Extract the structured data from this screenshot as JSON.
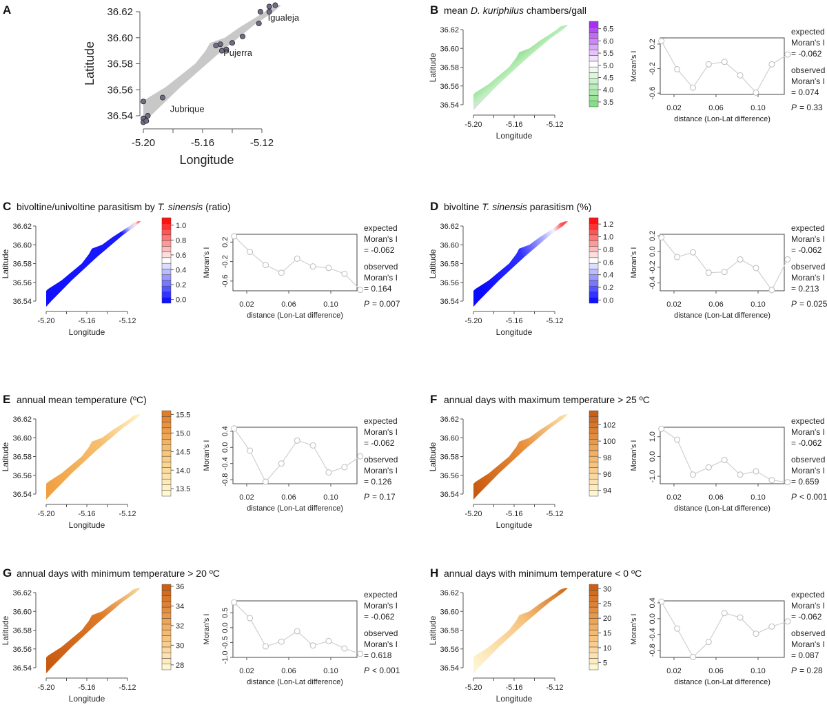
{
  "chart_data": [
    {
      "panel": "A",
      "type": "scatter",
      "xlabel": "Longitude",
      "ylabel": "Latitude",
      "xticks": [
        "-5.20",
        "-5.16",
        "-5.12"
      ],
      "yticks": [
        "36.54",
        "36.56",
        "36.58",
        "36.60",
        "36.62"
      ],
      "fill_color": "#c8c8c8",
      "point_color": "#6f6d86",
      "sites": [
        [
          -5.2,
          36.551
        ],
        [
          -5.187,
          36.554
        ],
        [
          -5.2,
          36.538
        ],
        [
          -5.2,
          36.535
        ],
        [
          -5.198,
          36.536
        ],
        [
          -5.197,
          36.54
        ],
        [
          -5.151,
          36.594
        ],
        [
          -5.148,
          36.595
        ],
        [
          -5.147,
          36.59
        ],
        [
          -5.144,
          36.591
        ],
        [
          -5.14,
          36.596
        ],
        [
          -5.133,
          36.601
        ],
        [
          -5.122,
          36.611
        ],
        [
          -5.121,
          36.62
        ],
        [
          -5.115,
          36.62
        ],
        [
          -5.115,
          36.624
        ],
        [
          -5.111,
          36.625
        ]
      ],
      "place_labels": [
        {
          "name": "Igualeja",
          "lon": -5.116,
          "lat": 36.613
        },
        {
          "name": "Pujerra",
          "lon": -5.146,
          "lat": 36.586
        },
        {
          "name": "Jubrique",
          "lon": -5.182,
          "lat": 36.543
        }
      ]
    },
    {
      "panel": "B",
      "type": "heatmap+line",
      "title_pre": "mean ",
      "title_italic": "D. kuriphilus",
      "title_post": " chambers/gall",
      "map_stops": [
        [
          "0",
          "#9be39b"
        ],
        [
          "0.6",
          "#c4efc4"
        ],
        [
          "0.8",
          "#e8d4f4"
        ],
        [
          "1",
          "#b048e8"
        ]
      ],
      "map_dir": "perp",
      "colorbar": {
        "ticks": [
          "3.5",
          "4.0",
          "4.5",
          "5.0",
          "5.5",
          "6.0",
          "6.5"
        ],
        "range": [
          3.3,
          6.8
        ],
        "low": "#7ddc7d",
        "mid": "#ffffff",
        "high": "#a020f0"
      },
      "moran": {
        "distance": [
          0.008,
          0.023,
          0.038,
          0.053,
          0.068,
          0.083,
          0.098,
          0.113,
          0.128
        ],
        "values": [
          0.25,
          -0.21,
          -0.51,
          -0.13,
          -0.09,
          -0.31,
          -0.59,
          -0.13,
          0.03
        ],
        "ylim": [
          -0.62,
          0.3
        ],
        "yticks": [
          "-0.6",
          "-0.2",
          "0.2"
        ]
      },
      "expected": "= -0.062",
      "observed": "= 0.074",
      "p": "= 0.33"
    },
    {
      "panel": "C",
      "type": "heatmap+line",
      "title_pre": "bivoltine/univoltine parasitism by ",
      "title_italic": "T. sinensis",
      "title_post": " (ratio)",
      "map_stops": [
        [
          "0",
          "#1010ff"
        ],
        [
          "0.82",
          "#1a1aff"
        ],
        [
          "0.9",
          "#c8c8ff"
        ],
        [
          "0.96",
          "#ffe0e0"
        ],
        [
          "1",
          "#ff4040"
        ]
      ],
      "map_dir": "along",
      "colorbar": {
        "ticks": [
          "0.0",
          "0.2",
          "0.4",
          "0.6",
          "0.8",
          "1.0"
        ],
        "range": [
          -0.05,
          1.1
        ],
        "low": "#0000ff",
        "mid": "#ffffff",
        "high": "#ff0000"
      },
      "moran": {
        "distance": [
          0.008,
          0.023,
          0.038,
          0.053,
          0.068,
          0.083,
          0.098,
          0.113,
          0.128
        ],
        "values": [
          0.32,
          0.0,
          -0.27,
          -0.43,
          -0.14,
          -0.3,
          -0.33,
          -0.45,
          -0.78
        ],
        "ylim": [
          -0.8,
          0.36
        ],
        "yticks": [
          "-0.6",
          "-0.2",
          "0.2"
        ]
      },
      "expected": "= -0.062",
      "observed": "= 0.164",
      "p": "= 0.007"
    },
    {
      "panel": "D",
      "type": "heatmap+line",
      "title_pre": "bivoltine ",
      "title_italic": "T. sinensis",
      "title_post": " parasitism (%)",
      "map_stops": [
        [
          "0",
          "#0a0aff"
        ],
        [
          "0.5",
          "#3030ff"
        ],
        [
          "0.78",
          "#b0b0ff"
        ],
        [
          "0.9",
          "#f4f4ff"
        ],
        [
          "1",
          "#ff5050"
        ]
      ],
      "map_dir": "mixed",
      "colorbar": {
        "ticks": [
          "0.0",
          "0.2",
          "0.4",
          "0.6",
          "0.8",
          "1.0",
          "1.2"
        ],
        "range": [
          -0.05,
          1.3
        ],
        "low": "#0000ff",
        "mid": "#ffffff",
        "high": "#ff0000"
      },
      "moran": {
        "distance": [
          0.008,
          0.023,
          0.038,
          0.053,
          0.068,
          0.083,
          0.098,
          0.113,
          0.128
        ],
        "values": [
          0.18,
          -0.07,
          -0.01,
          -0.27,
          -0.26,
          -0.1,
          -0.21,
          -0.49,
          -0.1
        ],
        "ylim": [
          -0.5,
          0.22
        ],
        "yticks": [
          "-0.4",
          "-0.2",
          "0.0",
          "0.2"
        ]
      },
      "expected": "= -0.062",
      "observed": "= 0.213",
      "p": "= 0.025"
    },
    {
      "panel": "E",
      "type": "heatmap+line",
      "title_pre": "annual mean temperature (ºC)",
      "title_italic": "",
      "title_post": "",
      "map_stops": [
        [
          "0",
          "#f0a040"
        ],
        [
          "0.6",
          "#f6c070"
        ],
        [
          "1",
          "#fff2c8"
        ]
      ],
      "map_dir": "along",
      "colorbar": {
        "ticks": [
          "13.5",
          "14.0",
          "14.5",
          "15.0",
          "15.5"
        ],
        "range": [
          13.3,
          15.6
        ],
        "low": "#fffbd8",
        "mid": "#f8c87a",
        "high": "#e07820"
      },
      "moran": {
        "distance": [
          0.008,
          0.023,
          0.038,
          0.053,
          0.068,
          0.083,
          0.098,
          0.113,
          0.128
        ],
        "values": [
          0.47,
          -0.08,
          -0.85,
          -0.4,
          0.17,
          0.05,
          -0.62,
          -0.49,
          -0.22
        ],
        "ylim": [
          -0.9,
          0.5
        ],
        "yticks": [
          "-0.8",
          "-0.4",
          "0.0",
          "0.4"
        ]
      },
      "expected": "= -0.062",
      "observed": "= 0.126",
      "p": "= 0.17"
    },
    {
      "panel": "F",
      "type": "heatmap+line",
      "title_pre": "annual days with maximum temperature > 25 ºC",
      "title_italic": "",
      "title_post": "",
      "map_stops": [
        [
          "0",
          "#c85a10"
        ],
        [
          "0.55",
          "#e8903c"
        ],
        [
          "1",
          "#fbe3b0"
        ]
      ],
      "map_dir": "along",
      "colorbar": {
        "ticks": [
          "94",
          "96",
          "98",
          "100",
          "102"
        ],
        "range": [
          93.3,
          103.7
        ],
        "low": "#fffbd8",
        "mid": "#f4b060",
        "high": "#c85a10"
      },
      "moran": {
        "distance": [
          0.008,
          0.023,
          0.038,
          0.053,
          0.068,
          0.083,
          0.098,
          0.113,
          0.128
        ],
        "values": [
          1.4,
          0.85,
          -0.92,
          -0.55,
          -0.18,
          -0.92,
          -0.75,
          -1.2,
          -1.3
        ],
        "ylim": [
          -1.38,
          1.48
        ],
        "yticks": [
          "-1.0",
          "0.0",
          "1.0"
        ]
      },
      "expected": "= -0.062",
      "observed": "= 0.659",
      "p": "< 0.001"
    },
    {
      "panel": "G",
      "type": "heatmap+line",
      "title_pre": "annual days with minimum temperature > 20 ºC",
      "title_italic": "",
      "title_post": "",
      "map_stops": [
        [
          "0",
          "#c85a10"
        ],
        [
          "0.6",
          "#dd7a28"
        ],
        [
          "1",
          "#f8d8a0"
        ]
      ],
      "map_dir": "along",
      "colorbar": {
        "ticks": [
          "28",
          "30",
          "32",
          "34",
          "36"
        ],
        "range": [
          27.5,
          36.2
        ],
        "low": "#fffbd8",
        "mid": "#f4b060",
        "high": "#c85a10"
      },
      "moran": {
        "distance": [
          0.008,
          0.023,
          0.038,
          0.053,
          0.068,
          0.083,
          0.098,
          0.113,
          0.128
        ],
        "values": [
          0.85,
          0.32,
          -0.63,
          -0.47,
          -0.12,
          -0.6,
          -0.45,
          -0.7,
          -0.88
        ],
        "ylim": [
          -1.0,
          0.9
        ],
        "yticks": [
          "-1.0",
          "-0.5",
          "0.0",
          "0.5"
        ]
      },
      "expected": "= -0.062",
      "observed": "= 0.618",
      "p": "< 0.001"
    },
    {
      "panel": "H",
      "type": "heatmap+line",
      "title_pre": "annual days with minimum temperature < 0 ºC",
      "title_italic": "",
      "title_post": "",
      "map_stops": [
        [
          "0",
          "#fff4d0"
        ],
        [
          "0.55",
          "#f6c27c"
        ],
        [
          "1",
          "#d06a18"
        ]
      ],
      "map_dir": "along",
      "colorbar": {
        "ticks": [
          "5",
          "10",
          "15",
          "20",
          "25",
          "30"
        ],
        "range": [
          2.5,
          31.5
        ],
        "low": "#fffbd8",
        "mid": "#f4b060",
        "high": "#c85a10"
      },
      "moran": {
        "distance": [
          0.008,
          0.023,
          0.038,
          0.053,
          0.068,
          0.083,
          0.098,
          0.113,
          0.128
        ],
        "values": [
          0.43,
          -0.25,
          -0.97,
          -0.59,
          0.14,
          0.03,
          -0.38,
          -0.2,
          -0.07
        ],
        "ylim": [
          -0.98,
          0.45
        ],
        "yticks": [
          "-0.8",
          "-0.4",
          "0.0",
          "0.4"
        ]
      },
      "expected": "= -0.062",
      "observed": "= 0.087",
      "p": "= 0.28"
    }
  ],
  "common": {
    "map_xlabel": "Longitude",
    "map_ylabel": "Latitude",
    "map_xticks": [
      "-5.20",
      "-5.16",
      "-5.12"
    ],
    "map_yticks": [
      "36.54",
      "36.56",
      "36.58",
      "36.60",
      "36.62"
    ],
    "moran_xlabel": "distance (Lon-Lat difference)",
    "moran_ylabel": "Moran's I",
    "moran_xticks": [
      "0.02",
      "0.06",
      "0.10"
    ],
    "expected_l1": "expected",
    "expected_l2": "Moran's I",
    "observed_l1": "observed",
    "observed_l2": "Moran's I",
    "p_label": "P",
    "line_color": "#d0d0d0"
  }
}
